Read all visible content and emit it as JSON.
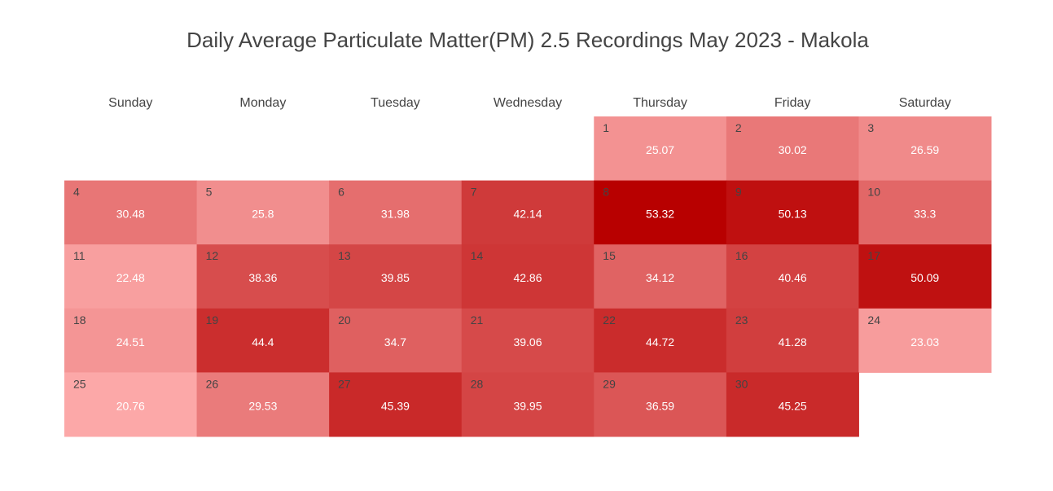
{
  "chart_data": {
    "type": "heatmap",
    "title": "Daily Average Particulate Matter(PM) 2.5 Recordings May 2023 - Makola",
    "weekdays": [
      "Sunday",
      "Monday",
      "Tuesday",
      "Wednesday",
      "Thursday",
      "Friday",
      "Saturday"
    ],
    "first_weekday_index": 4,
    "days": [
      {
        "day": 1,
        "value": 25.07
      },
      {
        "day": 2,
        "value": 30.02
      },
      {
        "day": 3,
        "value": 26.59
      },
      {
        "day": 4,
        "value": 30.48
      },
      {
        "day": 5,
        "value": 25.8
      },
      {
        "day": 6,
        "value": 31.98
      },
      {
        "day": 7,
        "value": 42.14
      },
      {
        "day": 8,
        "value": 53.32
      },
      {
        "day": 9,
        "value": 50.13
      },
      {
        "day": 10,
        "value": 33.3
      },
      {
        "day": 11,
        "value": 22.48
      },
      {
        "day": 12,
        "value": 38.36
      },
      {
        "day": 13,
        "value": 39.85
      },
      {
        "day": 14,
        "value": 42.86
      },
      {
        "day": 15,
        "value": 34.12
      },
      {
        "day": 16,
        "value": 40.46
      },
      {
        "day": 17,
        "value": 50.09
      },
      {
        "day": 18,
        "value": 24.51
      },
      {
        "day": 19,
        "value": 44.4
      },
      {
        "day": 20,
        "value": 34.7
      },
      {
        "day": 21,
        "value": 39.06
      },
      {
        "day": 22,
        "value": 44.72
      },
      {
        "day": 23,
        "value": 41.28
      },
      {
        "day": 24,
        "value": 23.03
      },
      {
        "day": 25,
        "value": 20.76
      },
      {
        "day": 26,
        "value": 29.53
      },
      {
        "day": 27,
        "value": 45.39
      },
      {
        "day": 28,
        "value": 39.95
      },
      {
        "day": 29,
        "value": 36.59
      },
      {
        "day": 30,
        "value": 45.25
      }
    ],
    "colorscale": {
      "low": "#fca8a8",
      "high": "#b80000"
    }
  }
}
